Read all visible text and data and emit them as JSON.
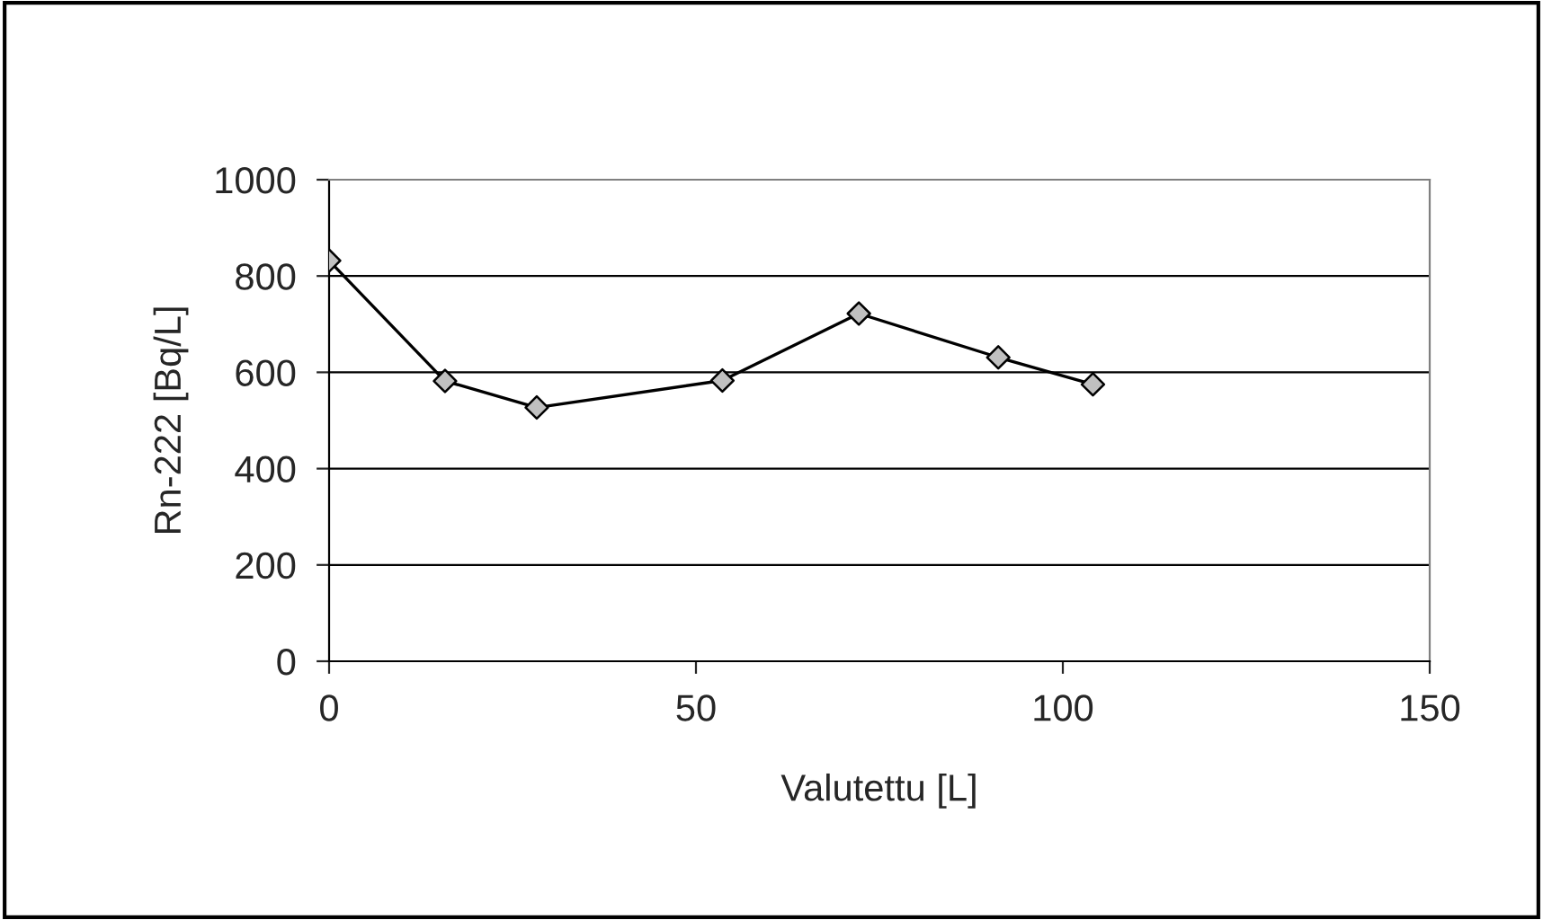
{
  "chart_data": {
    "type": "line",
    "xlabel": "Valutettu [L]",
    "ylabel": "Rn-222 [Bq/L]",
    "x": [
      0,
      15.8,
      28.3,
      53.6,
      72.2,
      91.2,
      104.1
    ],
    "series": [
      {
        "color": "#000000",
        "values": [
          832,
          582,
          527,
          583,
          722,
          631,
          575
        ]
      }
    ],
    "xlim": [
      0,
      150
    ],
    "xticks": [
      0,
      50,
      100,
      150
    ],
    "ylim": [
      0,
      1000
    ],
    "yticks": [
      0,
      200,
      400,
      600,
      800,
      1000
    ],
    "grid": "y",
    "marker": "diamond",
    "line_style": "solid",
    "legend": false
  }
}
